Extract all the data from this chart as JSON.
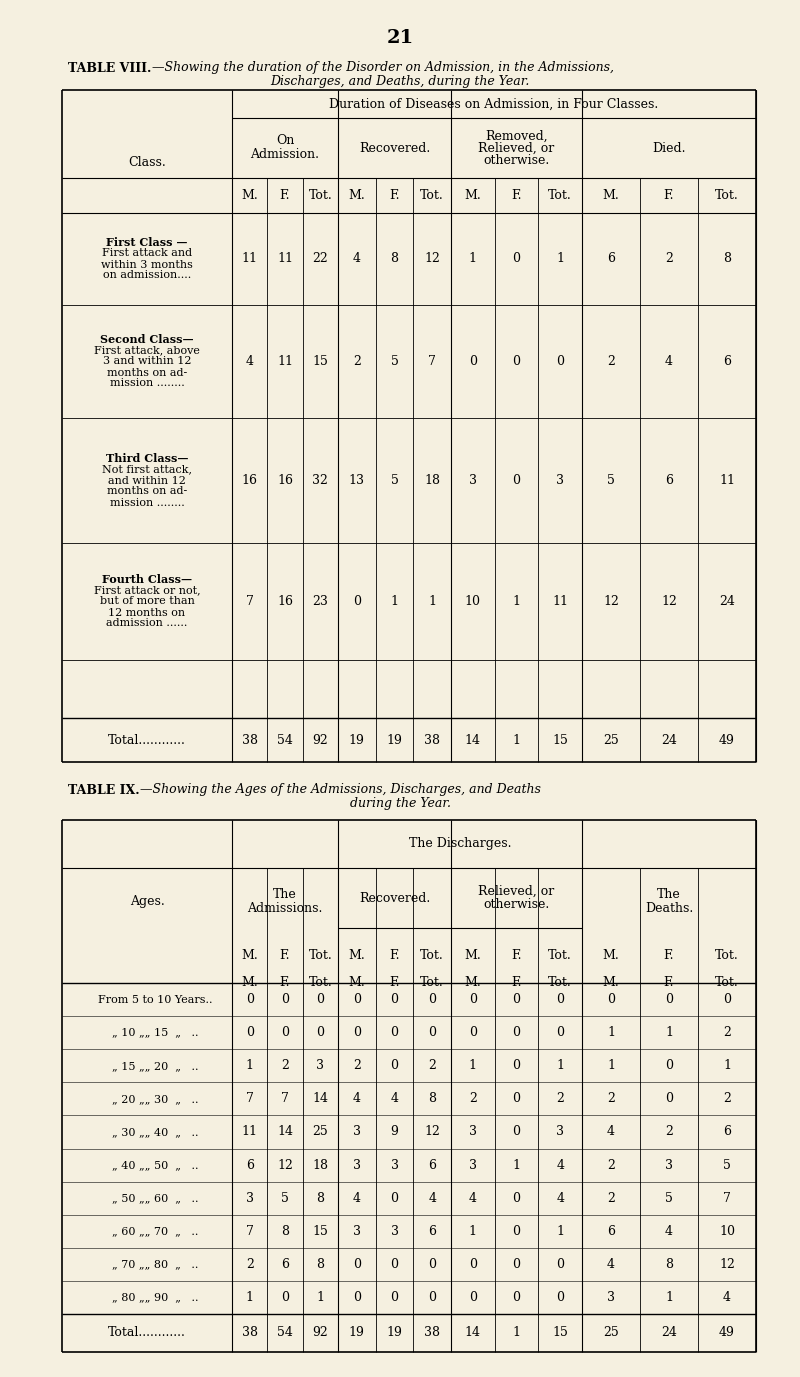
{
  "page_num": "21",
  "bg_color": "#f5f0e0",
  "table8_col_headers": [
    "On\nAdmission.",
    "Recovered.",
    "Removed,\nRelieved, or\notherwise.",
    "Died."
  ],
  "table8_subheaders": [
    "M.",
    "F.",
    "Tot.",
    "M.",
    "F.",
    "Tot.",
    "M.",
    "F.",
    "Tot.",
    "M.",
    "F.",
    "Tot."
  ],
  "table8_row_label_lines": [
    [
      "First Class —",
      "First attack and",
      "within 3 months",
      "on admission...."
    ],
    [
      "Second Class—",
      "First attack, above",
      "3 and within 12",
      "months on ad-",
      "mission ........"
    ],
    [
      "Third Class—",
      "Not first attack,",
      "and within 12",
      "months on ad-",
      "mission ........"
    ],
    [
      "Fourth Class—",
      "First attack or not,",
      "but of more than",
      "12 months on",
      "admission ......"
    ]
  ],
  "table8_data": [
    [
      11,
      11,
      22,
      4,
      8,
      12,
      1,
      0,
      1,
      6,
      2,
      8
    ],
    [
      4,
      11,
      15,
      2,
      5,
      7,
      0,
      0,
      0,
      2,
      4,
      6
    ],
    [
      16,
      16,
      32,
      13,
      5,
      18,
      3,
      0,
      3,
      5,
      6,
      11
    ],
    [
      7,
      16,
      23,
      0,
      1,
      1,
      10,
      1,
      11,
      12,
      12,
      24
    ]
  ],
  "table8_totals": [
    38,
    54,
    92,
    19,
    19,
    38,
    14,
    1,
    15,
    25,
    24,
    49
  ],
  "table9_subheaders": [
    "M.",
    "F.",
    "Tot.",
    "M.",
    "F.",
    "Tot.",
    "M.",
    "F.",
    "Tot.",
    "M.",
    "F.",
    "Tot."
  ],
  "table9_age_labels": [
    "From 5 to 10 Years..",
    "„ 10 „„ 15  „   ..",
    "„ 15 „„ 20  „   ..",
    "„ 20 „„ 30  „   ..",
    "„ 30 „„ 40  „   ..",
    "„ 40 „„ 50  „   ..",
    "„ 50 „„ 60  „   ..",
    "„ 60 „„ 70  „   ..",
    "„ 70 „„ 80  „   ..",
    "„ 80 „„ 90  „   .."
  ],
  "table9_data": [
    [
      0,
      0,
      0,
      0,
      0,
      0,
      0,
      0,
      0,
      0,
      0,
      0
    ],
    [
      0,
      0,
      0,
      0,
      0,
      0,
      0,
      0,
      0,
      1,
      1,
      2
    ],
    [
      1,
      2,
      3,
      2,
      0,
      2,
      1,
      0,
      1,
      1,
      0,
      1
    ],
    [
      7,
      7,
      14,
      4,
      4,
      8,
      2,
      0,
      2,
      2,
      0,
      2
    ],
    [
      11,
      14,
      25,
      3,
      9,
      12,
      3,
      0,
      3,
      4,
      2,
      6
    ],
    [
      6,
      12,
      18,
      3,
      3,
      6,
      3,
      1,
      4,
      2,
      3,
      5
    ],
    [
      3,
      5,
      8,
      4,
      0,
      4,
      4,
      0,
      4,
      2,
      5,
      7
    ],
    [
      7,
      8,
      15,
      3,
      3,
      6,
      1,
      0,
      1,
      6,
      4,
      10
    ],
    [
      2,
      6,
      8,
      0,
      0,
      0,
      0,
      0,
      0,
      4,
      8,
      12
    ],
    [
      1,
      0,
      1,
      0,
      0,
      0,
      0,
      0,
      0,
      3,
      1,
      4
    ]
  ],
  "table9_totals": [
    38,
    54,
    92,
    19,
    19,
    38,
    14,
    1,
    15,
    25,
    24,
    49
  ]
}
